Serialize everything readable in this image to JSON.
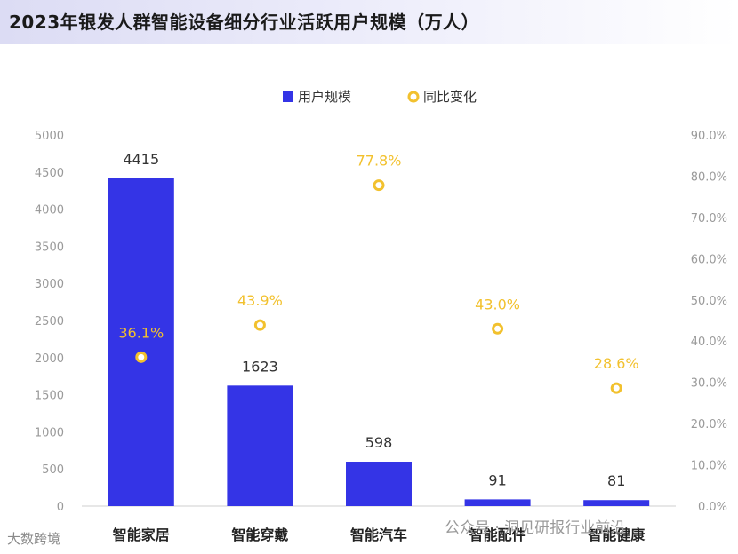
{
  "title": "2023年银发人群智能设备细分行业活跃用户规模（万人）",
  "legend": {
    "bar_label": "用户规模",
    "line_label": "同比变化"
  },
  "colors": {
    "bar": "#3434e6",
    "marker": "#f2c12e",
    "label_yoy": "#f2c12e",
    "axis_text": "#9a9a9a",
    "value_text": "#333333"
  },
  "chart_data": {
    "type": "bar",
    "title": "2023年银发人群智能设备细分行业活跃用户规模（万人）",
    "categories": [
      "智能家居",
      "智能穿戴",
      "智能汽车",
      "智能配件",
      "智能健康"
    ],
    "series": [
      {
        "name": "用户规模",
        "type": "bar",
        "axis": "left",
        "values": [
          4415,
          1623,
          598,
          91,
          81
        ],
        "labels": [
          "4415",
          "1623",
          "598",
          "91",
          "81"
        ]
      },
      {
        "name": "同比变化",
        "type": "scatter",
        "axis": "right",
        "values": [
          36.1,
          43.9,
          77.8,
          43.0,
          28.6
        ],
        "labels": [
          "36.1%",
          "43.9%",
          "77.8%",
          "43.0%",
          "28.6%"
        ]
      }
    ],
    "y_left": {
      "range": [
        0,
        5000
      ],
      "ticks": [
        "0",
        "500",
        "1000",
        "1500",
        "2000",
        "2500",
        "3000",
        "3500",
        "4000",
        "4500",
        "5000"
      ]
    },
    "y_right": {
      "range": [
        0,
        90
      ],
      "ticks": [
        "0.0%",
        "10.0%",
        "20.0%",
        "30.0%",
        "40.0%",
        "50.0%",
        "60.0%",
        "70.0%",
        "80.0%",
        "90.0%"
      ]
    },
    "legend_position": "top-center",
    "grid": false
  },
  "watermarks": {
    "left": "大数跨境",
    "right": "公众号 · 洞见研报行业前沿"
  }
}
